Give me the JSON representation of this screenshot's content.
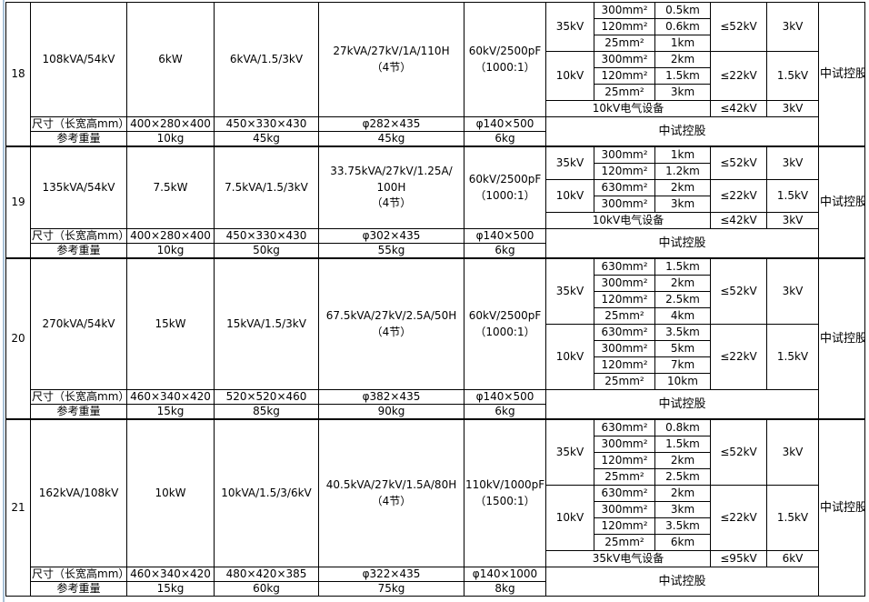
{
  "table": {
    "accent_color": "#a9c2d8",
    "border_color": "#000000",
    "blocks": [
      {
        "no": "18",
        "capacity": "108kVA/54kV",
        "power": "6kW",
        "output": "6kVA/1.5/3kV",
        "module_lines": [
          "27kVA/27kV/1A/110H",
          "（4节）"
        ],
        "divider_lines": [
          "60kV/2500pF",
          "（1000:1）"
        ],
        "groups": [
          {
            "voltage": "35kV",
            "limit": "≤52kV",
            "test": "3kV",
            "cables": [
              {
                "section": "300mm²",
                "length": "0.5km"
              },
              {
                "section": "120mm²",
                "length": "0.6km"
              },
              {
                "section": "25mm²",
                "length": "1km"
              }
            ]
          },
          {
            "voltage": "10kV",
            "limit": "≤22kV",
            "test": "1.5kV",
            "cables": [
              {
                "section": "300mm²",
                "length": "2km"
              },
              {
                "section": "120mm²",
                "length": "1.5km"
              },
              {
                "section": "25mm²",
                "length": "3km"
              }
            ]
          }
        ],
        "equipment": {
          "label": "10kV电气设备",
          "limit": "≤42kV",
          "test": "3kV"
        },
        "brand_span": "中试控股",
        "brand_right": "中试控股",
        "size_label": "尺寸（长宽高mm）",
        "sizes": [
          "400×280×400",
          "450×330×430",
          "φ282×435",
          "φ140×500"
        ],
        "weight_label": "参考重量",
        "weights": [
          "10kg",
          "45kg",
          "45kg",
          "6kg"
        ]
      },
      {
        "no": "19",
        "capacity": "135kVA/54kV",
        "power": "7.5kW",
        "output": "7.5kVA/1.5/3kV",
        "module_lines": [
          "33.75kVA/27kV/1.25A/",
          "100H",
          "（4节）"
        ],
        "divider_lines": [
          "60kV/2500pF",
          "（1000:1）"
        ],
        "groups": [
          {
            "voltage": "35kV",
            "limit": "≤52kV",
            "test": "3kV",
            "cables": [
              {
                "section": "300mm²",
                "length": "1km"
              },
              {
                "section": "120mm²",
                "length": "1.2km"
              }
            ]
          },
          {
            "voltage": "10kV",
            "limit": "≤22kV",
            "test": "1.5kV",
            "cables": [
              {
                "section": "630mm²",
                "length": "2km"
              },
              {
                "section": "300mm²",
                "length": "3km"
              }
            ]
          }
        ],
        "equipment": {
          "label": "10kV电气设备",
          "limit": "≤42kV",
          "test": "3kV"
        },
        "brand_span": "中试控股",
        "brand_right": "中试控股",
        "size_label": "尺寸（长宽高mm）",
        "sizes": [
          "400×280×400",
          "450×330×430",
          "φ302×435",
          "φ140×500"
        ],
        "weight_label": "参考重量",
        "weights": [
          "10kg",
          "50kg",
          "55kg",
          "6kg"
        ]
      },
      {
        "no": "20",
        "capacity": "270kVA/54kV",
        "power": "15kW",
        "output": "15kVA/1.5/3kV",
        "module_lines": [
          "67.5kVA/27kV/2.5A/50H",
          "（4节）"
        ],
        "divider_lines": [
          "60kV/2500pF",
          "（1000:1）"
        ],
        "groups": [
          {
            "voltage": "35kV",
            "limit": "≤52kV",
            "test": "3kV",
            "cables": [
              {
                "section": "630mm²",
                "length": "1.5km"
              },
              {
                "section": "300mm²",
                "length": "2km"
              },
              {
                "section": "120mm²",
                "length": "2.5km"
              },
              {
                "section": "25mm²",
                "length": "4km"
              }
            ]
          },
          {
            "voltage": "10kV",
            "limit": "≤22kV",
            "test": "1.5kV",
            "cables": [
              {
                "section": "630mm²",
                "length": "3.5km"
              },
              {
                "section": "300mm²",
                "length": "5km"
              },
              {
                "section": "120mm²",
                "length": "7km"
              },
              {
                "section": "25mm²",
                "length": "10km"
              }
            ]
          }
        ],
        "equipment": null,
        "brand_span": "中试控股",
        "brand_right": "中试控股",
        "size_label": "尺寸（长宽高mm）",
        "sizes": [
          "460×340×420",
          "520×520×460",
          "φ382×435",
          "φ140×500"
        ],
        "weight_label": "参考重量",
        "weights": [
          "15kg",
          "85kg",
          "90kg",
          "6kg"
        ]
      },
      {
        "no": "21",
        "capacity": "162kVA/108kV",
        "power": "10kW",
        "output": "10kVA/1.5/3/6kV",
        "module_lines": [
          "40.5kVA/27kV/1.5A/80H",
          "（4节）"
        ],
        "divider_lines": [
          "110kV/1000pF",
          "（1500:1）"
        ],
        "groups": [
          {
            "voltage": "35kV",
            "limit": "≤52kV",
            "test": "3kV",
            "cables": [
              {
                "section": "630mm²",
                "length": "0.8km"
              },
              {
                "section": "300mm²",
                "length": "1.5km"
              },
              {
                "section": "120mm²",
                "length": "2km"
              },
              {
                "section": "25mm²",
                "length": "2.5km"
              }
            ]
          },
          {
            "voltage": "10kV",
            "limit": "≤22kV",
            "test": "1.5kV",
            "cables": [
              {
                "section": "630mm²",
                "length": "2km"
              },
              {
                "section": "300mm²",
                "length": "3km"
              },
              {
                "section": "120mm²",
                "length": "3.5km"
              },
              {
                "section": "25mm²",
                "length": "6km"
              }
            ]
          }
        ],
        "equipment": {
          "label": "35kV电气设备",
          "limit": "≤95kV",
          "test": "6kV"
        },
        "brand_span": "中试控股",
        "brand_right": "中试控股",
        "size_label": "尺寸（长宽高mm）",
        "sizes": [
          "460×340×420",
          "480×420×385",
          "φ322×435",
          "φ140×1000"
        ],
        "weight_label": "参考重量",
        "weights": [
          "15kg",
          "60kg",
          "75kg",
          "8kg"
        ]
      }
    ]
  }
}
